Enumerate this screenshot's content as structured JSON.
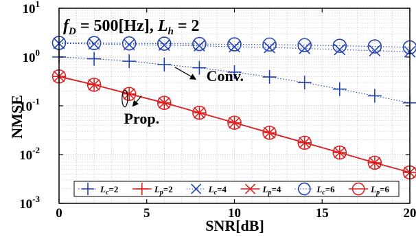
{
  "chart_data": {
    "type": "line",
    "title": "",
    "annotation_main": {
      "prefix": "f",
      "prefix_sub": "D",
      "middle": " = 500[Hz], ",
      "suffix": "L",
      "suffix_sub": "h",
      "end": " = 2"
    },
    "xlabel": "SNR[dB]",
    "ylabel": "NMSE",
    "xlim": [
      0,
      20
    ],
    "ylim_log10": [
      -3,
      1
    ],
    "y_scale": "log",
    "grid": true,
    "x_ticks": [
      "0",
      "5",
      "10",
      "15",
      "20"
    ],
    "y_ticks": [
      {
        "base": "10",
        "exp": "1",
        "exp_num": 1
      },
      {
        "base": "10",
        "exp": "0",
        "exp_num": 0
      },
      {
        "base": "10",
        "exp": "-1",
        "exp_num": -1
      },
      {
        "base": "10",
        "exp": "-2",
        "exp_num": -2
      },
      {
        "base": "10",
        "exp": "-3",
        "exp_num": -3
      }
    ],
    "x": [
      0,
      2,
      4,
      6,
      8,
      10,
      12,
      14,
      16,
      18,
      20
    ],
    "series": [
      {
        "name": "Lc=2",
        "label_base": "L",
        "label_sub": "c",
        "label_eq": "=2",
        "marker": "plus",
        "color": "#1f3fb4",
        "dash": "dot",
        "values": [
          1.0,
          0.92,
          0.82,
          0.7,
          0.6,
          0.49,
          0.39,
          0.3,
          0.22,
          0.16,
          0.115
        ]
      },
      {
        "name": "Lp=2",
        "label_base": "L",
        "label_sub": "p",
        "label_eq": "=2",
        "marker": "plus",
        "color": "#dd2020",
        "dash": "solid",
        "values": [
          0.4,
          0.27,
          0.175,
          0.115,
          0.072,
          0.045,
          0.028,
          0.0175,
          0.011,
          0.0068,
          0.0043
        ]
      },
      {
        "name": "Lc=4",
        "label_base": "L",
        "label_sub": "c",
        "label_eq": "=4",
        "marker": "x",
        "color": "#1f3fb4",
        "dash": "dot",
        "values": [
          1.9,
          1.85,
          1.8,
          1.75,
          1.7,
          1.62,
          1.57,
          1.5,
          1.42,
          1.35,
          1.28
        ]
      },
      {
        "name": "Lp=4",
        "label_base": "L",
        "label_sub": "p",
        "label_eq": "=4",
        "marker": "x",
        "color": "#dd2020",
        "dash": "solid",
        "values": [
          0.4,
          0.27,
          0.175,
          0.115,
          0.072,
          0.045,
          0.028,
          0.0175,
          0.011,
          0.0068,
          0.0043
        ]
      },
      {
        "name": "Lc=6",
        "label_base": "L",
        "label_sub": "c",
        "label_eq": "=6",
        "marker": "circle",
        "color": "#1f3fb4",
        "dash": "dot",
        "values": [
          1.95,
          1.93,
          1.9,
          1.88,
          1.85,
          1.82,
          1.8,
          1.75,
          1.7,
          1.65,
          1.58
        ]
      },
      {
        "name": "Lp=6",
        "label_base": "L",
        "label_sub": "p",
        "label_eq": "=6",
        "marker": "circle",
        "color": "#dd2020",
        "dash": "solid",
        "values": [
          0.4,
          0.27,
          0.175,
          0.115,
          0.072,
          0.045,
          0.028,
          0.0175,
          0.011,
          0.0068,
          0.0043
        ]
      }
    ],
    "annotations": [
      {
        "text": "Conv.",
        "x": 8.4,
        "y": 0.32,
        "arrow_from": [
          7.8,
          0.35
        ],
        "arrow_to": [
          6.6,
          0.62
        ]
      },
      {
        "text": "Prop.",
        "x": 3.7,
        "y": 0.043,
        "arrow_from": [
          4.2,
          0.098
        ],
        "arrow_to": [
          4.7,
          0.16
        ]
      }
    ],
    "legend_placement": "bottom"
  }
}
